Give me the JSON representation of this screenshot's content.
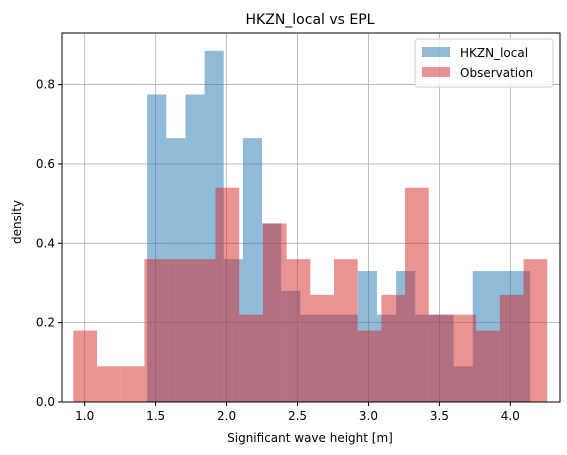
{
  "chart_data": {
    "type": "histogram",
    "title": "HKZN_local vs EPL",
    "xlabel": "Significant wave height [m]",
    "ylabel": "density",
    "xlim": [
      0.84,
      4.35
    ],
    "ylim": [
      0,
      0.93
    ],
    "xticks": [
      1.0,
      1.5,
      2.0,
      2.5,
      3.0,
      3.5,
      4.0
    ],
    "xtick_labels": [
      "1.0",
      "1.5",
      "2.0",
      "2.5",
      "3.0",
      "3.5",
      "4.0"
    ],
    "yticks": [
      0.0,
      0.2,
      0.4,
      0.6,
      0.8
    ],
    "ytick_labels": [
      "0.0",
      "0.2",
      "0.4",
      "0.6",
      "0.8"
    ],
    "grid": true,
    "legend_position": "top-right",
    "series": [
      {
        "name": "HKZN_local",
        "color": "#1f77b4",
        "alpha": 0.5,
        "bin_edges": [
          1.44,
          1.575,
          1.71,
          1.845,
          1.98,
          2.115,
          2.25,
          2.385,
          2.52,
          2.655,
          2.79,
          2.925,
          3.06,
          3.195,
          3.33,
          3.465,
          3.6,
          3.735,
          3.87,
          4.005,
          4.14
        ],
        "values": [
          0.775,
          0.665,
          0.775,
          0.885,
          0.36,
          0.665,
          0.45,
          0.28,
          0.22,
          0.22,
          0.22,
          0.33,
          0.22,
          0.33,
          0.22,
          0.22,
          0.09,
          0.33,
          0.33,
          0.33
        ]
      },
      {
        "name": "Observation",
        "color": "#d62728",
        "alpha": 0.5,
        "bin_edges": [
          0.92,
          1.087,
          1.254,
          1.421,
          1.588,
          1.755,
          1.922,
          2.089,
          2.256,
          2.423,
          2.59,
          2.757,
          2.924,
          3.091,
          3.258,
          3.425,
          3.592,
          3.759,
          3.926,
          4.093,
          4.26
        ],
        "values": [
          0.18,
          0.09,
          0.09,
          0.36,
          0.36,
          0.36,
          0.54,
          0.22,
          0.45,
          0.36,
          0.27,
          0.36,
          0.18,
          0.27,
          0.54,
          0.22,
          0.22,
          0.18,
          0.27,
          0.36
        ]
      }
    ]
  }
}
